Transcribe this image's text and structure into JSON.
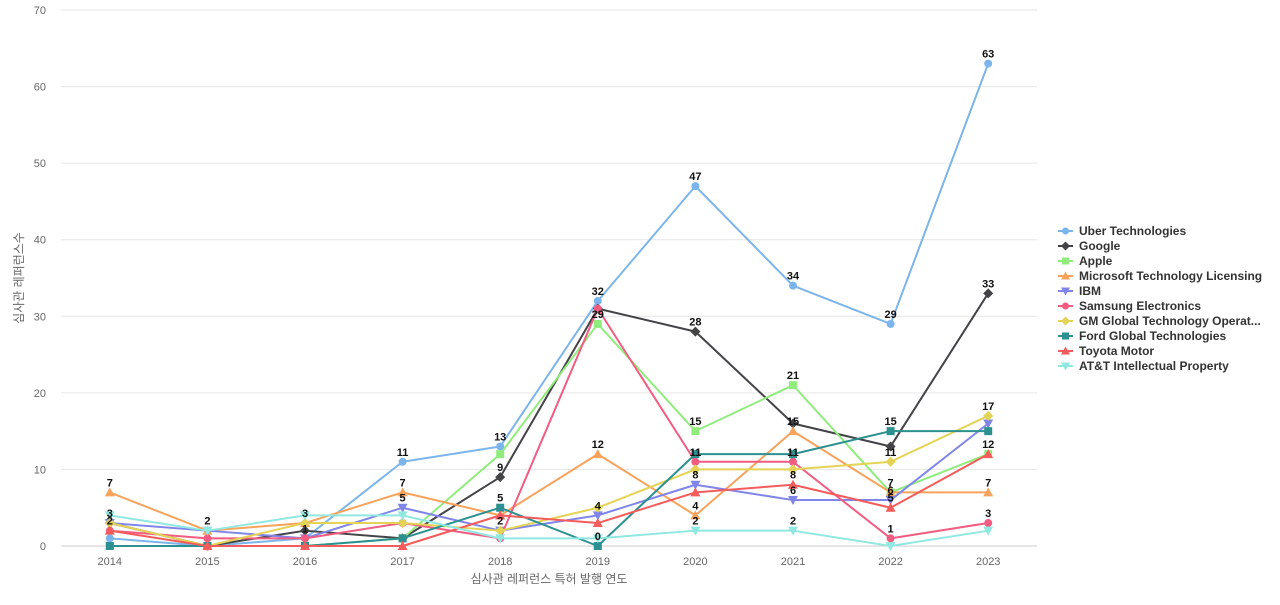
{
  "chart_data": {
    "type": "line",
    "title": "",
    "xlabel": "심사관 레퍼런스 특허 발행 연도",
    "ylabel": "심사관 레퍼런스수",
    "categories": [
      "2014",
      "2015",
      "2016",
      "2017",
      "2018",
      "2019",
      "2020",
      "2021",
      "2022",
      "2023"
    ],
    "ylim": [
      0,
      70
    ],
    "yticks": [
      0,
      10,
      20,
      30,
      40,
      50,
      60,
      70
    ],
    "grid": true,
    "legend_position": "right",
    "series": [
      {
        "name": "Uber Technologies",
        "color": "#7cb5ec",
        "marker": "circle",
        "values": [
          1,
          0,
          1,
          11,
          13,
          32,
          47,
          34,
          29,
          63
        ],
        "labels": [
          false,
          false,
          false,
          true,
          true,
          true,
          true,
          true,
          true,
          true
        ]
      },
      {
        "name": "Google",
        "color": "#434348",
        "marker": "diamond",
        "values": [
          3,
          0,
          2,
          1,
          9,
          31,
          28,
          16,
          13,
          33
        ],
        "labels": [
          false,
          false,
          false,
          false,
          true,
          false,
          true,
          false,
          false,
          true
        ]
      },
      {
        "name": "Apple",
        "color": "#90ed7d",
        "marker": "square",
        "values": [
          0,
          0,
          0,
          1,
          12,
          29,
          15,
          21,
          7,
          12
        ],
        "labels": [
          false,
          false,
          false,
          false,
          false,
          true,
          true,
          true,
          false,
          false
        ]
      },
      {
        "name": "Microsoft Technology Licensing",
        "color": "#f7a35c",
        "marker": "triangle",
        "values": [
          7,
          2,
          3,
          7,
          4,
          12,
          4,
          15,
          7,
          7
        ],
        "labels": [
          true,
          true,
          false,
          true,
          false,
          true,
          true,
          true,
          true,
          true
        ]
      },
      {
        "name": "IBM",
        "color": "#8085e9",
        "marker": "triangle-down",
        "values": [
          3,
          2,
          1,
          5,
          2,
          4,
          8,
          6,
          6,
          16
        ],
        "labels": [
          true,
          false,
          false,
          true,
          true,
          true,
          true,
          true,
          true,
          false
        ]
      },
      {
        "name": "Samsung Electronics",
        "color": "#f15c80",
        "marker": "circle",
        "values": [
          2,
          1,
          1,
          3,
          1,
          31,
          11,
          11,
          1,
          3
        ],
        "labels": [
          true,
          false,
          true,
          false,
          false,
          false,
          true,
          true,
          true,
          true
        ]
      },
      {
        "name": "GM Global Technology Operat...",
        "color": "#e4d354",
        "marker": "diamond",
        "values": [
          3,
          0,
          3,
          3,
          2,
          5,
          10,
          10,
          11,
          17
        ],
        "labels": [
          false,
          false,
          true,
          false,
          false,
          false,
          false,
          false,
          true,
          true
        ]
      },
      {
        "name": "Ford Global Technologies",
        "color": "#2b908f",
        "marker": "square",
        "values": [
          0,
          0,
          0,
          1,
          5,
          0,
          12,
          12,
          15,
          15
        ],
        "labels": [
          false,
          false,
          false,
          false,
          true,
          true,
          false,
          false,
          true,
          false
        ]
      },
      {
        "name": "Toyota Motor",
        "color": "#f45b5b",
        "marker": "triangle",
        "values": [
          2,
          0,
          0,
          0,
          4,
          3,
          7,
          8,
          5,
          12
        ],
        "labels": [
          false,
          false,
          false,
          false,
          false,
          false,
          false,
          true,
          true,
          true
        ]
      },
      {
        "name": "AT&T Intellectual Property",
        "color": "#91e8e1",
        "marker": "triangle-down",
        "values": [
          4,
          2,
          4,
          4,
          1,
          1,
          2,
          2,
          0,
          2
        ],
        "labels": [
          false,
          false,
          false,
          false,
          false,
          false,
          true,
          true,
          false,
          false
        ]
      }
    ]
  }
}
